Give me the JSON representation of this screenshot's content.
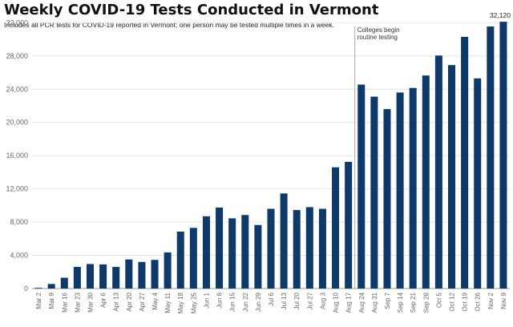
{
  "chart_data": {
    "type": "bar",
    "title": "Weekly COVID-19 Tests Conducted in Vermont",
    "subtitle": "Includes all PCR tests for COVID-19 reported in Vermont; one person may be tested multiple times in a week.",
    "xlabel": "",
    "ylabel": "",
    "ylim": [
      0,
      33000
    ],
    "yticks": [
      0,
      4000,
      8000,
      12000,
      16000,
      20000,
      24000,
      28000,
      32000
    ],
    "ytick_labels": [
      "0",
      "4,000",
      "8,000",
      "12,000",
      "16,000",
      "20,000",
      "24,000",
      "28,000",
      "32,000"
    ],
    "grid": true,
    "color": "#0d3a6b",
    "categories": [
      "Mar 2",
      "Mar 9",
      "Mar 16",
      "Mar 23",
      "Mar 30",
      "Apr 6",
      "Apr 13",
      "Apr 20",
      "Apr 27",
      "May 4",
      "May 11",
      "May 18",
      "May 25",
      "Jun 1",
      "Jun 8",
      "Jun 15",
      "Jun 22",
      "Jun 29",
      "Jul 6",
      "Jul 13",
      "Jul 20",
      "Jul 27",
      "Aug 3",
      "Aug 10",
      "Aug 17",
      "Aug 24",
      "Aug 31",
      "Sep 7",
      "Sep 14",
      "Sep 21",
      "Sep 28",
      "Oct 5",
      "Oct 12",
      "Oct 19",
      "Oct 26",
      "Nov 2",
      "Nov 9"
    ],
    "values": [
      80,
      550,
      1300,
      2600,
      2950,
      2900,
      2600,
      3500,
      3200,
      3450,
      4350,
      6850,
      7300,
      8700,
      9750,
      8450,
      8850,
      7650,
      9600,
      11450,
      9450,
      9800,
      9600,
      14600,
      15250,
      24550,
      23100,
      21600,
      23600,
      24150,
      25650,
      28050,
      26900,
      30300,
      25300,
      31550,
      32120
    ],
    "annotations": [
      {
        "text_lines": [
          "Colleges begin",
          "routine testing"
        ],
        "between": [
          "Aug 17",
          "Aug 24"
        ]
      }
    ],
    "data_labels": [
      {
        "category": "Nov 9",
        "text": "32,120"
      }
    ]
  }
}
